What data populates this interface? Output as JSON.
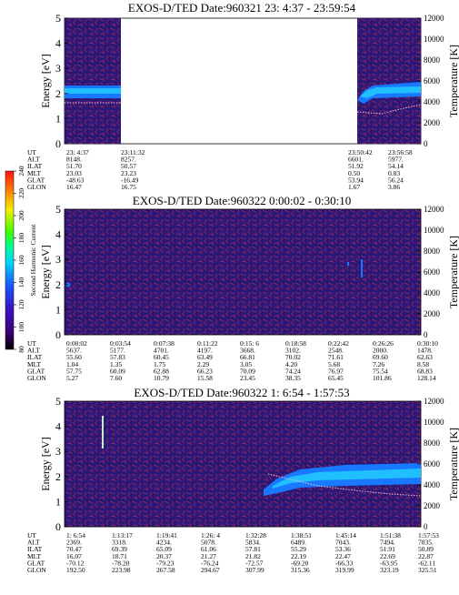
{
  "colors": {
    "background": "#2a1878",
    "noise_red": "#a0285a",
    "band_blue": "#1878ff",
    "band_bright": "#20c0ff",
    "temperature_trace": "#ffb8c8",
    "colorbar": [
      "#000000",
      "#40007a",
      "#3a10c0",
      "#1858ff",
      "#00d0ff",
      "#00ff90",
      "#40ff00",
      "#f0f000",
      "#ff8c00",
      "#ff1010"
    ]
  },
  "colorbar": {
    "label": "Second Harmonic Current",
    "ticks": [
      "80",
      "100",
      "120",
      "140",
      "160",
      "180",
      "200",
      "220",
      "240"
    ]
  },
  "panels": [
    {
      "title": "EXOS-D/TED   Date:960321  23: 4:37 - 23:59:54",
      "ylabel_left": "Energy [eV]",
      "ylabel_right": "Temperature [K]",
      "yticks_left": [
        "0",
        "1",
        "2",
        "3",
        "4",
        "5"
      ],
      "yticks_right": [
        "0",
        "2000",
        "4000",
        "6000",
        "8000",
        "10000",
        "12000"
      ],
      "table": {
        "row_labels": [
          "UT",
          "ALT",
          "ILAT",
          "MLT",
          "GLAT",
          "GLON"
        ],
        "columns": [
          [
            "23: 4:37",
            "8148.",
            "51.70",
            "23.03",
            "-48.63",
            "16.47"
          ],
          [
            "23:11:32",
            "8257.",
            "50.57",
            "23.23",
            "-16.49",
            "16.75"
          ],
          [
            "23:50:42",
            "6601.",
            "51.92",
            "0.50",
            "53.94",
            "1.67"
          ],
          [
            "23:56:58",
            "5977.",
            "54.14",
            "0.83",
            "56.24",
            "3.86"
          ]
        ]
      }
    },
    {
      "title": "EXOS-D/TED   Date:960322  0:00:02 - 0:30:10",
      "ylabel_left": "Energy [eV]",
      "ylabel_right": "Temperature [K]",
      "yticks_left": [
        "0",
        "1",
        "2",
        "3",
        "4",
        "5"
      ],
      "yticks_right": [
        "0",
        "2000",
        "4000",
        "6000",
        "8000",
        "10000",
        "12000"
      ],
      "table": {
        "row_labels": [
          "UT",
          "ALT",
          "ILAT",
          "MLT",
          "GLAT",
          "GLON"
        ],
        "columns": [
          [
            "0:00:02",
            "5637.",
            "55.60",
            "1.04",
            "57.75",
            "5.27"
          ],
          [
            "0:03:54",
            "5177.",
            "57.83",
            "1.35",
            "60.09",
            "7.60"
          ],
          [
            "0:07:38",
            "4701.",
            "60.45",
            "1.75",
            "62.88",
            "10.79"
          ],
          [
            "0:11:22",
            "4197.",
            "63.49",
            "2.29",
            "66.23",
            "15.58"
          ],
          [
            "0:15: 6",
            "3668.",
            "66.81",
            "3.05",
            "70.09",
            "23.45"
          ],
          [
            "0:18:58",
            "3102.",
            "70.02",
            "4.20",
            "74.24",
            "38.35"
          ],
          [
            "0:22:42",
            "2548.",
            "71.61",
            "5.68",
            "76.97",
            "65.45"
          ],
          [
            "0:26:26",
            "2000.",
            "69.60",
            "7.26",
            "75.54",
            "101.86"
          ],
          [
            "0:30:10",
            "1478.",
            "62.63",
            "8.58",
            "68.83",
            "128.14"
          ]
        ]
      }
    },
    {
      "title": "EXOS-D/TED   Date:960322  1: 6:54 - 1:57:53",
      "ylabel_left": "Energy [eV]",
      "ylabel_right": "Temperature [K]",
      "yticks_left": [
        "0",
        "1",
        "2",
        "3",
        "4",
        "5"
      ],
      "yticks_right": [
        "0",
        "2000",
        "4000",
        "6000",
        "8000",
        "10000",
        "12000"
      ],
      "table": {
        "row_labels": [
          "UT",
          "ALT",
          "ILAT",
          "MLT",
          "GLAT",
          "GLON"
        ],
        "columns": [
          [
            "1: 6:54",
            "2369.",
            "70.47",
            "16.07",
            "-70.12",
            "192.50"
          ],
          [
            "1:13:17",
            "3318.",
            "69.39",
            "18.71",
            "-78.20",
            "223.98"
          ],
          [
            "1:19:41",
            "4234.",
            "65.09",
            "20.37",
            "-79.23",
            "267.58"
          ],
          [
            "1:26: 4",
            "5078.",
            "61.06",
            "21.27",
            "-76.24",
            "294.67"
          ],
          [
            "1:32:28",
            "5834.",
            "57.81",
            "21.82",
            "-72.57",
            "307.99"
          ],
          [
            "1:38:51",
            "6489.",
            "55.29",
            "22.19",
            "-69.20",
            "315.36"
          ],
          [
            "1:45:14",
            "7043.",
            "53.36",
            "22.47",
            "-66.33",
            "319.99"
          ],
          [
            "1:51:38",
            "7494.",
            "51.91",
            "22.69",
            "-63.95",
            "323.19"
          ],
          [
            "1:57:53",
            "7835.",
            "50.89",
            "22.87",
            "-62.11",
            "325.51"
          ]
        ]
      }
    }
  ],
  "chart_data": [
    {
      "type": "heatmap",
      "title": "EXOS-D/TED   Date:960321  23: 4:37 - 23:59:54",
      "xlabel": "UT",
      "ylabel": "Energy [eV]",
      "ylabel_right": "Temperature [K]",
      "ylim": [
        0,
        5
      ],
      "ylim_right": [
        0,
        12000
      ],
      "x_ticks": [
        "23: 4:37",
        "23:11:32",
        "23:50:42",
        "23:56:58"
      ],
      "colorbar_ticks": [
        80,
        100,
        120,
        140,
        160,
        180,
        200,
        220,
        240
      ],
      "data_gap": [
        "23:11:32",
        "23:50:42"
      ],
      "band_energy_ev": [
        [
          0.0,
          2.0
        ],
        [
          0.12,
          2.0
        ],
        [
          0.88,
          2.05
        ],
        [
          1.0,
          2.2
        ]
      ],
      "temperature_k": [
        [
          0.0,
          3950
        ],
        [
          0.12,
          3950
        ],
        [
          0.88,
          3000
        ],
        [
          0.94,
          3300
        ],
        [
          1.0,
          3900
        ]
      ]
    },
    {
      "type": "heatmap",
      "title": "EXOS-D/TED   Date:960322  0:00:02 - 0:30:10",
      "xlabel": "UT",
      "ylabel": "Energy [eV]",
      "ylabel_right": "Temperature [K]",
      "ylim": [
        0,
        5
      ],
      "ylim_right": [
        0,
        12000
      ],
      "x_ticks": [
        "0:00:02",
        "0:03:54",
        "0:07:38",
        "0:11:22",
        "0:15: 6",
        "0:18:58",
        "0:22:42",
        "0:26:26",
        "0:30:10"
      ],
      "colorbar_ticks": [
        80,
        100,
        120,
        140,
        160,
        180,
        200,
        220,
        240
      ]
    },
    {
      "type": "heatmap",
      "title": "EXOS-D/TED   Date:960322  1: 6:54 - 1:57:53",
      "xlabel": "UT",
      "ylabel": "Energy [eV]",
      "ylabel_right": "Temperature [K]",
      "ylim": [
        0,
        5
      ],
      "ylim_right": [
        0,
        12000
      ],
      "x_ticks": [
        "1: 6:54",
        "1:13:17",
        "1:19:41",
        "1:26: 4",
        "1:32:28",
        "1:38:51",
        "1:45:14",
        "1:51:38",
        "1:57:53"
      ],
      "colorbar_ticks": [
        80,
        100,
        120,
        140,
        160,
        180,
        200,
        220,
        240
      ],
      "band_energy_ev": [
        [
          0.57,
          1.9
        ],
        [
          0.6,
          2.1
        ],
        [
          0.75,
          2.3
        ],
        [
          1.0,
          2.4
        ]
      ],
      "temperature_k": [
        [
          0.57,
          4300
        ],
        [
          0.7,
          3950
        ],
        [
          0.85,
          3500
        ],
        [
          1.0,
          3300
        ]
      ]
    }
  ]
}
